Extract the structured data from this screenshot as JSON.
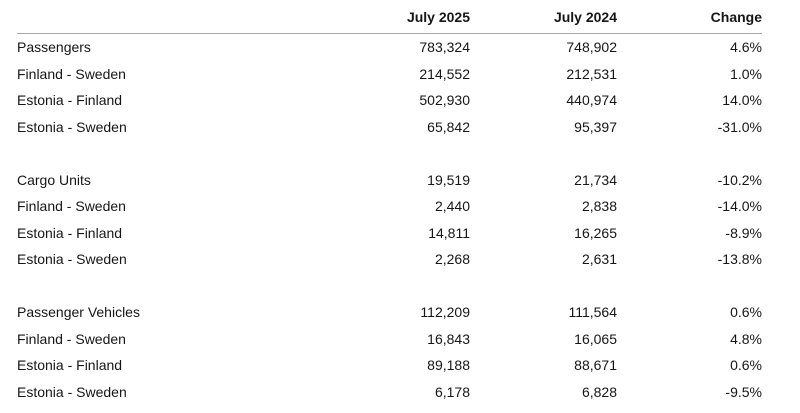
{
  "colors": {
    "background": "#ffffff",
    "text": "#161616",
    "header_rule": "#a9a9a9"
  },
  "chart_data": {
    "type": "table",
    "columns": [
      "",
      "July 2025",
      "July 2024",
      "Change"
    ],
    "sections": [
      {
        "total": {
          "label": "Passengers",
          "values": [
            "783,324",
            "748,902",
            "4.6%"
          ]
        },
        "rows": [
          {
            "label": "Finland - Sweden",
            "values": [
              "214,552",
              "212,531",
              "1.0%"
            ]
          },
          {
            "label": "Estonia - Finland",
            "values": [
              "502,930",
              "440,974",
              "14.0%"
            ]
          },
          {
            "label": "Estonia - Sweden",
            "values": [
              "65,842",
              "95,397",
              "-31.0%"
            ]
          }
        ]
      },
      {
        "total": {
          "label": "Cargo Units",
          "values": [
            "19,519",
            "21,734",
            "-10.2%"
          ]
        },
        "rows": [
          {
            "label": "Finland - Sweden",
            "values": [
              "2,440",
              "2,838",
              "-14.0%"
            ]
          },
          {
            "label": "Estonia - Finland",
            "values": [
              "14,811",
              "16,265",
              "-8.9%"
            ]
          },
          {
            "label": "Estonia - Sweden",
            "values": [
              "2,268",
              "2,631",
              "-13.8%"
            ]
          }
        ]
      },
      {
        "total": {
          "label": "Passenger Vehicles",
          "values": [
            "112,209",
            "111,564",
            "0.6%"
          ]
        },
        "rows": [
          {
            "label": "Finland - Sweden",
            "values": [
              "16,843",
              "16,065",
              "4.8%"
            ]
          },
          {
            "label": "Estonia - Finland",
            "values": [
              "89,188",
              "88,671",
              "0.6%"
            ]
          },
          {
            "label": "Estonia - Sweden",
            "values": [
              "6,178",
              "6,828",
              "-9.5%"
            ]
          }
        ]
      }
    ]
  }
}
